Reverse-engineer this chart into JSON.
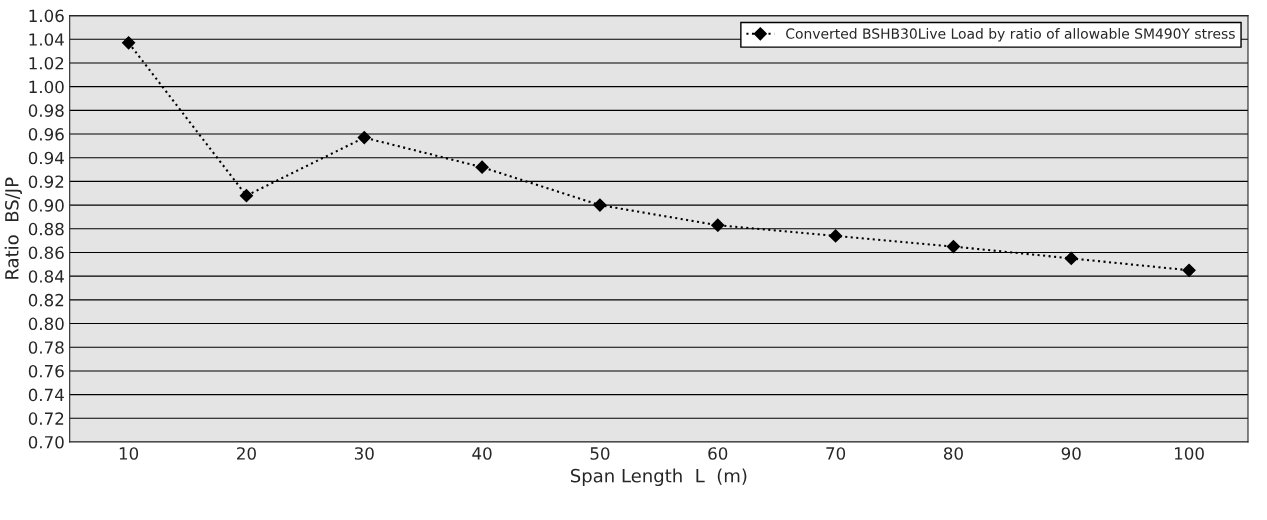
{
  "chart_data": {
    "type": "line",
    "xlabel": "Span Length  L  (m)",
    "ylabel": "Ratio  BS/JP",
    "categories": [
      "10",
      "20",
      "30",
      "40",
      "50",
      "60",
      "70",
      "80",
      "90",
      "100"
    ],
    "series": [
      {
        "name": "Converted BSHB30Live Load by ratio of allowable SM490Y stress",
        "color": "#000000",
        "values": [
          1.037,
          0.908,
          0.957,
          0.932,
          0.9,
          0.883,
          0.874,
          0.865,
          0.855,
          0.845
        ]
      }
    ],
    "ylim": [
      0.7,
      1.06
    ],
    "yticks": [
      {
        "value": 0.7,
        "label": "0.70"
      },
      {
        "value": 0.72,
        "label": "0.72"
      },
      {
        "value": 0.74,
        "label": "0.74"
      },
      {
        "value": 0.76,
        "label": "0.76"
      },
      {
        "value": 0.78,
        "label": "0.78"
      },
      {
        "value": 0.8,
        "label": "0.80"
      },
      {
        "value": 0.82,
        "label": "0.82"
      },
      {
        "value": 0.84,
        "label": "0.84"
      },
      {
        "value": 0.86,
        "label": "0.86"
      },
      {
        "value": 0.88,
        "label": "0.88"
      },
      {
        "value": 0.9,
        "label": "0.90"
      },
      {
        "value": 0.92,
        "label": "0.92"
      },
      {
        "value": 0.94,
        "label": "0.94"
      },
      {
        "value": 0.96,
        "label": "0.96"
      },
      {
        "value": 0.98,
        "label": "0.98"
      },
      {
        "value": 1.0,
        "label": "1.00"
      },
      {
        "value": 1.02,
        "label": "1.02"
      },
      {
        "value": 1.04,
        "label": "1.04"
      },
      {
        "value": 1.06,
        "label": "1.06"
      }
    ],
    "grid": "y",
    "legend": "top right",
    "marker": "diamond",
    "line_style": "dotted"
  }
}
